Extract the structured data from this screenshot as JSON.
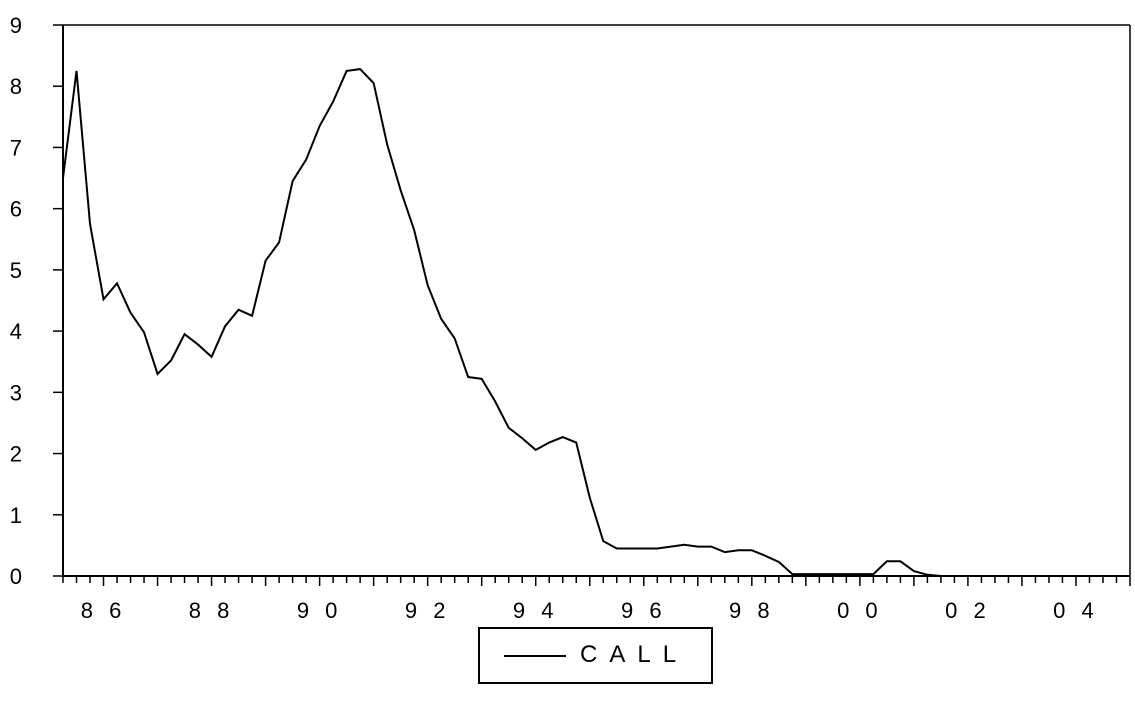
{
  "chart_data": {
    "type": "line",
    "title": "",
    "xlabel": "",
    "ylabel": "",
    "ylim": [
      0,
      9
    ],
    "xlim": [
      1985.25,
      2005.0
    ],
    "frequency": "quarterly",
    "y_ticks": [
      "0",
      "1",
      "2",
      "3",
      "4",
      "5",
      "6",
      "7",
      "8",
      "9"
    ],
    "x_tick_labels": [
      {
        "year": 1986,
        "label": "8 6"
      },
      {
        "year": 1988,
        "label": "8 8"
      },
      {
        "year": 1990,
        "label": "9 0"
      },
      {
        "year": 1992,
        "label": "9 2"
      },
      {
        "year": 1994,
        "label": "9 4"
      },
      {
        "year": 1996,
        "label": "9 6"
      },
      {
        "year": 1998,
        "label": "9 8"
      },
      {
        "year": 2000,
        "label": "0 0"
      },
      {
        "year": 2002,
        "label": "0 2"
      },
      {
        "year": 2004,
        "label": "0 4"
      }
    ],
    "legend": "bottom-center",
    "series": [
      {
        "name": "CALL",
        "color": "#000000",
        "start": "1985Q2",
        "values": [
          6.5,
          8.25,
          5.75,
          4.52,
          4.78,
          4.3,
          3.98,
          3.3,
          3.52,
          3.95,
          3.78,
          3.58,
          4.08,
          4.35,
          4.25,
          5.15,
          5.45,
          6.45,
          6.8,
          7.35,
          7.75,
          8.25,
          8.28,
          8.05,
          7.05,
          6.3,
          5.65,
          4.75,
          4.2,
          3.88,
          3.25,
          3.22,
          2.85,
          2.42,
          2.25,
          2.06,
          2.18,
          2.27,
          2.18,
          1.28,
          0.57,
          0.45,
          0.45,
          0.45,
          0.45,
          0.48,
          0.51,
          0.48,
          0.48,
          0.39,
          0.42,
          0.42,
          0.33,
          0.23,
          0.03,
          0.03,
          0.03,
          0.03,
          0.03,
          0.03,
          0.03,
          0.24,
          0.24,
          0.08,
          0.02,
          0.0,
          0.0,
          0.0,
          0.0,
          0.0,
          0.0,
          0.0,
          0.0,
          0.0,
          0.0,
          0.0,
          0.0,
          0.0,
          0.0
        ]
      }
    ]
  }
}
